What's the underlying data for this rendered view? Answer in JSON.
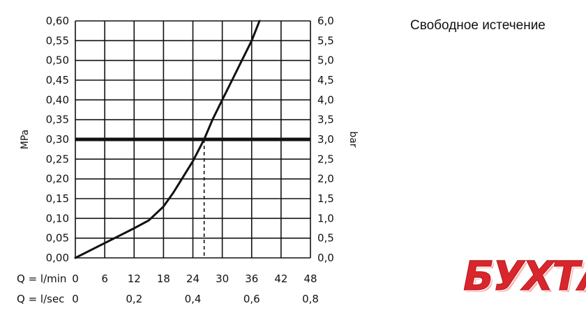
{
  "title": "Свободное истечение",
  "logo_text": "БУХТА",
  "colors": {
    "curve": "#111111",
    "grid": "#111111",
    "logo": "#d8262c"
  },
  "chart_data": {
    "type": "line",
    "title": "Свободное истечение",
    "x_unit_label": "Q = l/min",
    "x2_unit_label": "Q = l/sec",
    "ylabel": "MPa",
    "y2label": "bar",
    "xlim": [
      0,
      48
    ],
    "ylim": [
      0,
      0.6
    ],
    "x_ticks": [
      0,
      6,
      12,
      18,
      24,
      30,
      36,
      42,
      48
    ],
    "x_tick_labels": [
      "0",
      "6",
      "12",
      "18",
      "24",
      "30",
      "36",
      "42",
      "48"
    ],
    "x2_ticks": [
      0,
      12,
      24,
      36,
      48
    ],
    "x2_tick_labels": [
      "0",
      "0,2",
      "0,4",
      "0,6",
      "0,8"
    ],
    "y_ticks": [
      0,
      0.05,
      0.1,
      0.15,
      0.2,
      0.25,
      0.3,
      0.35,
      0.4,
      0.45,
      0.5,
      0.55,
      0.6
    ],
    "y_tick_labels": [
      "0,00",
      "0,05",
      "0,10",
      "0,15",
      "0,20",
      "0,25",
      "0,30",
      "0,35",
      "0,40",
      "0,45",
      "0,50",
      "0,55",
      "0,60"
    ],
    "y2_tick_labels": [
      "0,0",
      "0,5",
      "1,0",
      "1,5",
      "2,0",
      "2,5",
      "3,0",
      "3,5",
      "4,0",
      "4,5",
      "5,0",
      "5,5",
      "6,0"
    ],
    "grid": true,
    "series": [
      {
        "points": [
          [
            0,
            0
          ],
          [
            4,
            0.025
          ],
          [
            8,
            0.05
          ],
          [
            12,
            0.075
          ],
          [
            15,
            0.095
          ],
          [
            18,
            0.13
          ],
          [
            20,
            0.165
          ],
          [
            22,
            0.205
          ],
          [
            24,
            0.245
          ],
          [
            26.3,
            0.3
          ],
          [
            28,
            0.35
          ],
          [
            30,
            0.4
          ],
          [
            32,
            0.45
          ],
          [
            34,
            0.5
          ],
          [
            36,
            0.55
          ],
          [
            37.6,
            0.6
          ]
        ]
      }
    ],
    "reference_line": {
      "y": 0.3
    },
    "marker": {
      "x": 26.3,
      "y": 0.3
    }
  }
}
